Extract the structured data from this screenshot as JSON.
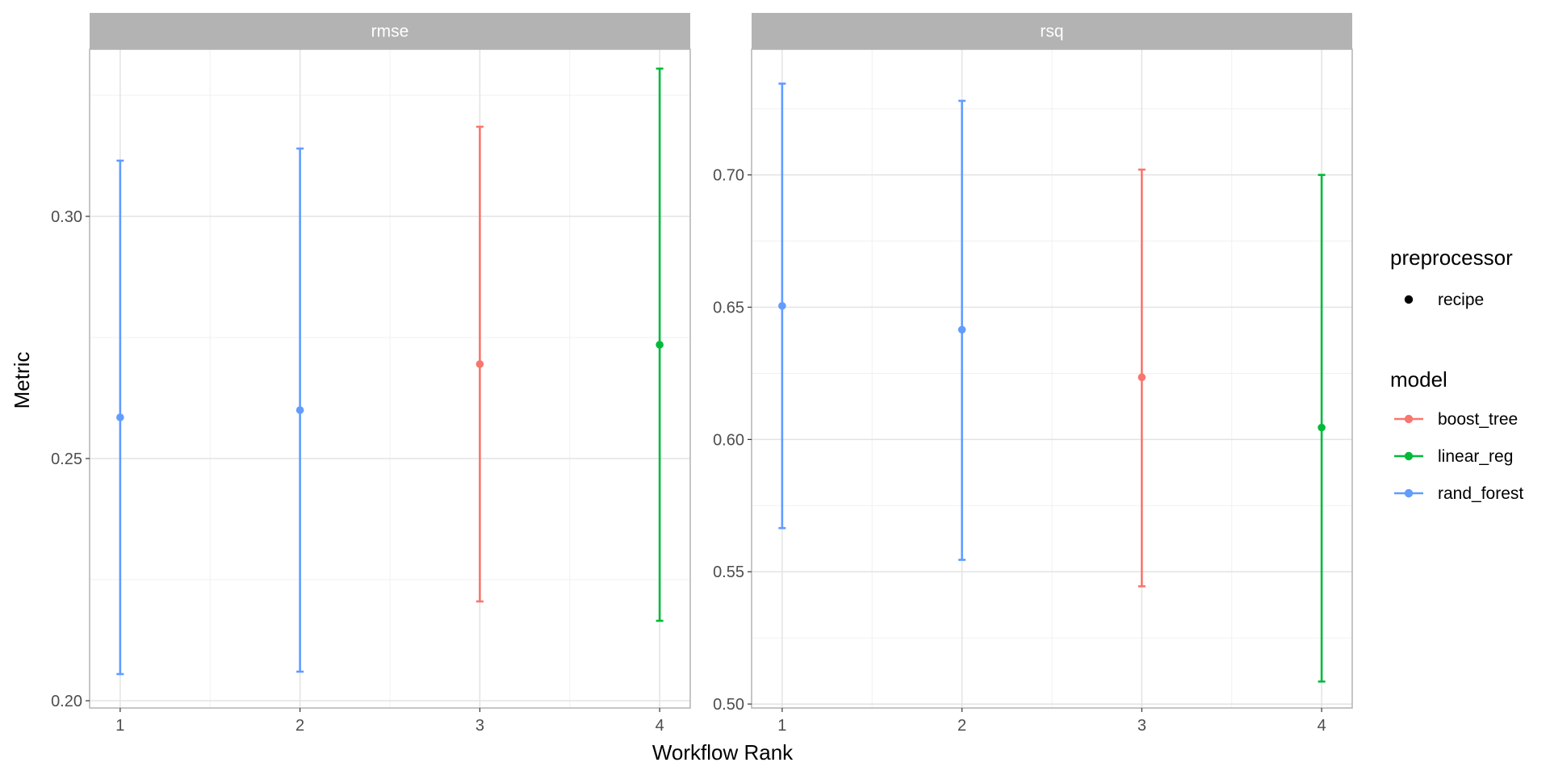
{
  "chart_data": {
    "type": "scatter",
    "xlabel": "Workflow Rank",
    "ylabel": "Metric",
    "x_ticks": [
      1,
      2,
      3,
      4
    ],
    "legend_position": "right",
    "grid": true,
    "series_colors": {
      "boost_tree": "#f8766d",
      "linear_reg": "#00ba38",
      "rand_forest": "#619cff"
    },
    "panels": [
      {
        "strip_label": "rmse",
        "ylim": [
          0.1985,
          0.3345
        ],
        "y_ticks": [
          0.2,
          0.25,
          0.3
        ],
        "y_tick_labels": [
          "0.20",
          "0.25",
          "0.30"
        ],
        "points": [
          {
            "rank": 1,
            "model": "rand_forest",
            "mean": 0.2585,
            "lower": 0.2055,
            "upper": 0.3115
          },
          {
            "rank": 2,
            "model": "rand_forest",
            "mean": 0.26,
            "lower": 0.206,
            "upper": 0.314
          },
          {
            "rank": 3,
            "model": "boost_tree",
            "mean": 0.2695,
            "lower": 0.2205,
            "upper": 0.3185
          },
          {
            "rank": 4,
            "model": "linear_reg",
            "mean": 0.2735,
            "lower": 0.2165,
            "upper": 0.3305
          }
        ]
      },
      {
        "strip_label": "rsq",
        "ylim": [
          0.4985,
          0.7475
        ],
        "y_ticks": [
          0.5,
          0.55,
          0.6,
          0.65,
          0.7
        ],
        "y_tick_labels": [
          "0.50",
          "0.55",
          "0.60",
          "0.65",
          "0.70"
        ],
        "points": [
          {
            "rank": 1,
            "model": "rand_forest",
            "mean": 0.6505,
            "lower": 0.5665,
            "upper": 0.7345
          },
          {
            "rank": 2,
            "model": "rand_forest",
            "mean": 0.6415,
            "lower": 0.5545,
            "upper": 0.728
          },
          {
            "rank": 3,
            "model": "boost_tree",
            "mean": 0.6235,
            "lower": 0.5445,
            "upper": 0.702
          },
          {
            "rank": 4,
            "model": "linear_reg",
            "mean": 0.6045,
            "lower": 0.5085,
            "upper": 0.7
          }
        ]
      }
    ],
    "legend": {
      "preprocessor_title": "preprocessor",
      "preprocessor_items": [
        "recipe"
      ],
      "model_title": "model",
      "model_items": [
        "boost_tree",
        "linear_reg",
        "rand_forest"
      ]
    }
  }
}
